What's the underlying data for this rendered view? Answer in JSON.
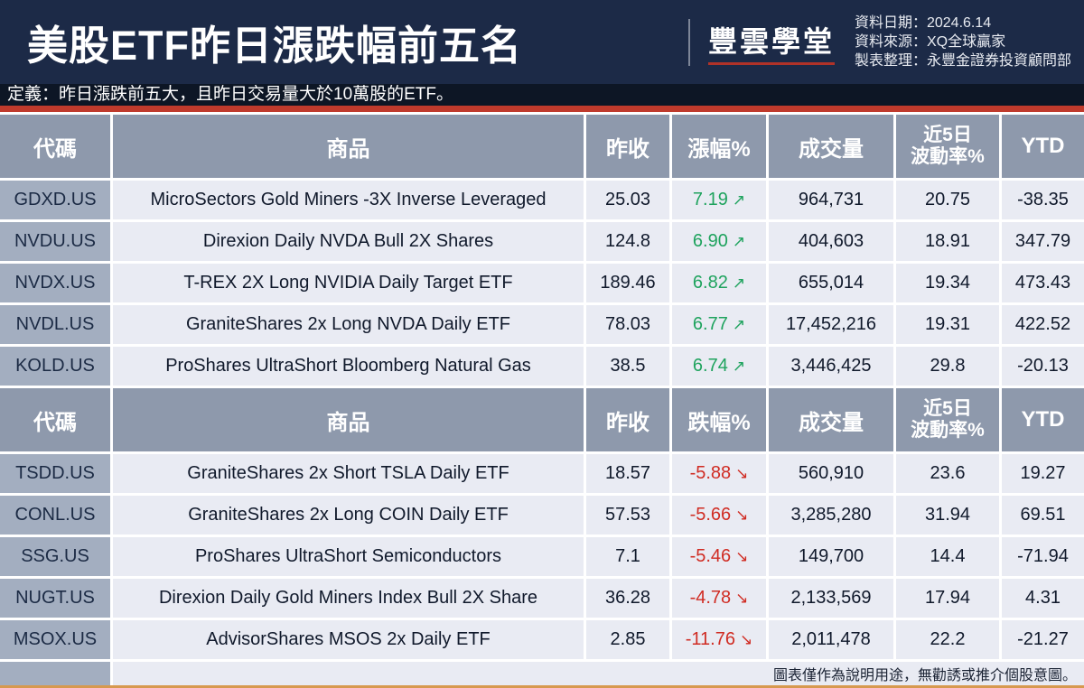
{
  "header": {
    "title": "美股ETF昨日漲跌幅前五名",
    "brand": "豐雲學堂",
    "meta": [
      {
        "label": "資料日期：",
        "value": "2024.6.14"
      },
      {
        "label": "資料來源：",
        "value": "XQ全球贏家"
      },
      {
        "label": "製表整理：",
        "value": "永豐金證券投資顧問部"
      }
    ]
  },
  "definition": "定義：昨日漲跌前五大，且昨日交易量大於10萬股的ETF。",
  "disclaimer": "圖表僅作為說明用途，無勸誘或推介個股意圖。",
  "colors": {
    "banner_navy": "#1c2a47",
    "definition_bg": "#0d1625",
    "red_bar": "#bf3a2c",
    "orange_bar": "#d7994f",
    "table_header_bg": "#8e99ac",
    "code_cell_bg": "#a3aec0",
    "data_cell_bg": "#e9ebf3",
    "up_green": "#1fa35e",
    "down_red": "#d02c23"
  },
  "chart_data": [
    {
      "type": "table",
      "arrow": "↗",
      "columns": {
        "code": "代碼",
        "product": "商品",
        "close": "昨收",
        "change": "漲幅%",
        "volume": "成交量",
        "vol5_line1": "近5日",
        "vol5_line2": "波動率%",
        "ytd": "YTD"
      },
      "rows": [
        {
          "code": "GDXD.US",
          "product": "MicroSectors Gold Miners -3X Inverse Leveraged",
          "close": "25.03",
          "change": "7.19",
          "volume": "964,731",
          "vol5": "20.75",
          "ytd": "-38.35"
        },
        {
          "code": "NVDU.US",
          "product": "Direxion Daily NVDA Bull 2X Shares",
          "close": "124.8",
          "change": "6.90",
          "volume": "404,603",
          "vol5": "18.91",
          "ytd": "347.79"
        },
        {
          "code": "NVDX.US",
          "product": "T-REX 2X Long NVIDIA Daily Target ETF",
          "close": "189.46",
          "change": "6.82",
          "volume": "655,014",
          "vol5": "19.34",
          "ytd": "473.43"
        },
        {
          "code": "NVDL.US",
          "product": "GraniteShares 2x Long NVDA Daily ETF",
          "close": "78.03",
          "change": "6.77",
          "volume": "17,452,216",
          "vol5": "19.31",
          "ytd": "422.52"
        },
        {
          "code": "KOLD.US",
          "product": "ProShares UltraShort Bloomberg Natural Gas",
          "close": "38.5",
          "change": "6.74",
          "volume": "3,446,425",
          "vol5": "29.8",
          "ytd": "-20.13"
        }
      ]
    },
    {
      "type": "table",
      "arrow": "↘",
      "columns": {
        "code": "代碼",
        "product": "商品",
        "close": "昨收",
        "change": "跌幅%",
        "volume": "成交量",
        "vol5_line1": "近5日",
        "vol5_line2": "波動率%",
        "ytd": "YTD"
      },
      "rows": [
        {
          "code": "TSDD.US",
          "product": "GraniteShares 2x Short TSLA Daily ETF",
          "close": "18.57",
          "change": "-5.88",
          "volume": "560,910",
          "vol5": "23.6",
          "ytd": "19.27"
        },
        {
          "code": "CONL.US",
          "product": "GraniteShares 2x Long COIN Daily ETF",
          "close": "57.53",
          "change": "-5.66",
          "volume": "3,285,280",
          "vol5": "31.94",
          "ytd": "69.51"
        },
        {
          "code": "SSG.US",
          "product": "ProShares UltraShort Semiconductors",
          "close": "7.1",
          "change": "-5.46",
          "volume": "149,700",
          "vol5": "14.4",
          "ytd": "-71.94"
        },
        {
          "code": "NUGT.US",
          "product": "Direxion Daily Gold Miners Index Bull 2X Share",
          "close": "36.28",
          "change": "-4.78",
          "volume": "2,133,569",
          "vol5": "17.94",
          "ytd": "4.31"
        },
        {
          "code": "MSOX.US",
          "product": "AdvisorShares MSOS 2x Daily ETF",
          "close": "2.85",
          "change": "-11.76",
          "volume": "2,011,478",
          "vol5": "22.2",
          "ytd": "-21.27"
        }
      ]
    }
  ]
}
